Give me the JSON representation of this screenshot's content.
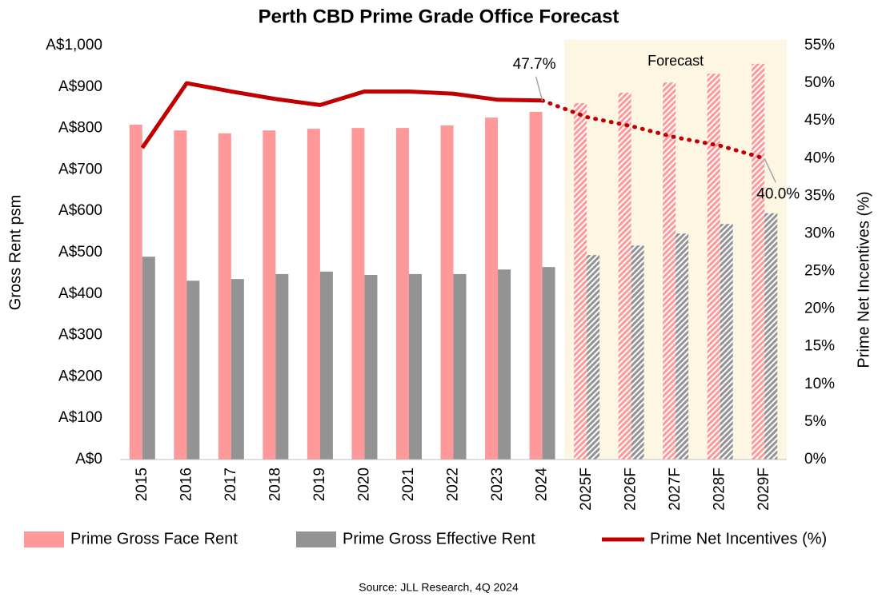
{
  "chart_data": {
    "type": "bar-line",
    "title": "Perth CBD Prime Grade Office Forecast",
    "ylabel": "Gross Rent psm",
    "y2label": "Prime Net Incentives (%)",
    "source": "Source: JLL Research, 4Q 2024",
    "categories": [
      "2015",
      "2016",
      "2017",
      "2018",
      "2019",
      "2020",
      "2021",
      "2022",
      "2023",
      "2024",
      "2025F",
      "2026F",
      "2027F",
      "2028F",
      "2029F"
    ],
    "forecast": {
      "label": "Forecast",
      "start_index": 10
    },
    "series": [
      {
        "name": "Prime Gross Face Rent",
        "color": "#ff9999",
        "type": "bar",
        "values": [
          809,
          795,
          788,
          795,
          799,
          801,
          801,
          807,
          826,
          840,
          861,
          886,
          911,
          932,
          956
        ]
      },
      {
        "name": "Prime Gross Effective Rent",
        "color": "#939393",
        "type": "bar",
        "values": [
          490,
          432,
          436,
          448,
          454,
          446,
          448,
          448,
          459,
          465,
          494,
          517,
          546,
          569,
          595
        ]
      },
      {
        "name": "Prime Net Incentives (%)",
        "color": "#c00000",
        "type": "line",
        "axis": "y2",
        "values": [
          41.4,
          50.0,
          48.9,
          47.9,
          47.1,
          48.9,
          48.9,
          48.6,
          47.8,
          47.7,
          45.5,
          44.3,
          42.8,
          41.7,
          40.0
        ],
        "value_labels": [
          null,
          null,
          null,
          null,
          null,
          null,
          null,
          null,
          null,
          "47.7%",
          null,
          null,
          null,
          null,
          "40.0%"
        ]
      }
    ],
    "ylim": [
      0,
      1000
    ],
    "yticks": [
      {
        "value": 0,
        "label": "A$0"
      },
      {
        "value": 100,
        "label": "A$100"
      },
      {
        "value": 200,
        "label": "A$200"
      },
      {
        "value": 300,
        "label": "A$300"
      },
      {
        "value": 400,
        "label": "A$400"
      },
      {
        "value": 500,
        "label": "A$500"
      },
      {
        "value": 600,
        "label": "A$600"
      },
      {
        "value": 700,
        "label": "A$700"
      },
      {
        "value": 800,
        "label": "A$800"
      },
      {
        "value": 900,
        "label": "A$900"
      },
      {
        "value": 1000,
        "label": "A$1,000"
      }
    ],
    "y2lim": [
      0,
      55
    ],
    "y2ticks": [
      {
        "value": 0,
        "label": "0%"
      },
      {
        "value": 5,
        "label": "5%"
      },
      {
        "value": 10,
        "label": "10%"
      },
      {
        "value": 15,
        "label": "15%"
      },
      {
        "value": 20,
        "label": "20%"
      },
      {
        "value": 25,
        "label": "25%"
      },
      {
        "value": 30,
        "label": "30%"
      },
      {
        "value": 35,
        "label": "35%"
      },
      {
        "value": 40,
        "label": "40%"
      },
      {
        "value": 45,
        "label": "45%"
      },
      {
        "value": 50,
        "label": "50%"
      },
      {
        "value": 55,
        "label": "55%"
      }
    ],
    "grid": false
  }
}
